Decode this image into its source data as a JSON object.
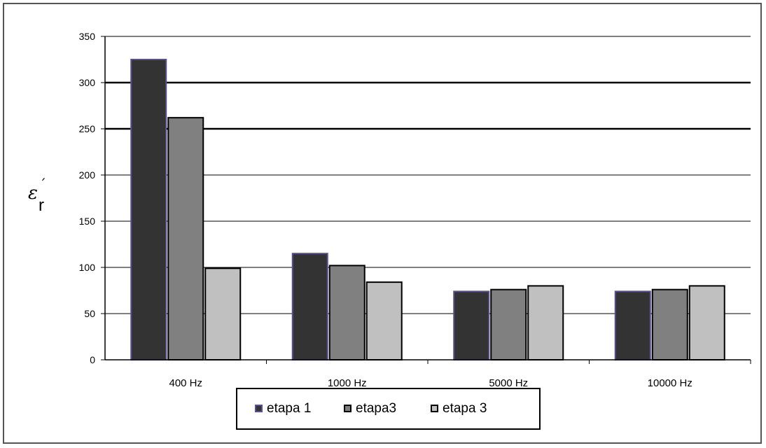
{
  "chart_data": {
    "type": "bar",
    "categories": [
      "400 Hz",
      "1000 Hz",
      "5000 Hz",
      "10000 Hz"
    ],
    "series": [
      {
        "name": "etapa 1",
        "values": [
          325,
          115,
          74,
          74
        ],
        "color": "#333333"
      },
      {
        "name": "etapa3",
        "values": [
          262,
          102,
          76,
          76
        ],
        "color": "#808080"
      },
      {
        "name": "etapa 3",
        "values": [
          99,
          84,
          80,
          80
        ],
        "color": "#c0c0c0"
      }
    ],
    "ylabel": "ε´r",
    "ylabel_main": "ε",
    "ylabel_sub": "r",
    "ylabel_mark": "´",
    "ylim": [
      0,
      350
    ],
    "yticks": [
      0,
      50,
      100,
      150,
      200,
      250,
      300,
      350
    ],
    "grid": true,
    "legend_position": "bottom-center",
    "colors": {
      "series_outline": "#000000",
      "etapa1_outline": "#5a4f8a",
      "frame": "#555555"
    }
  }
}
